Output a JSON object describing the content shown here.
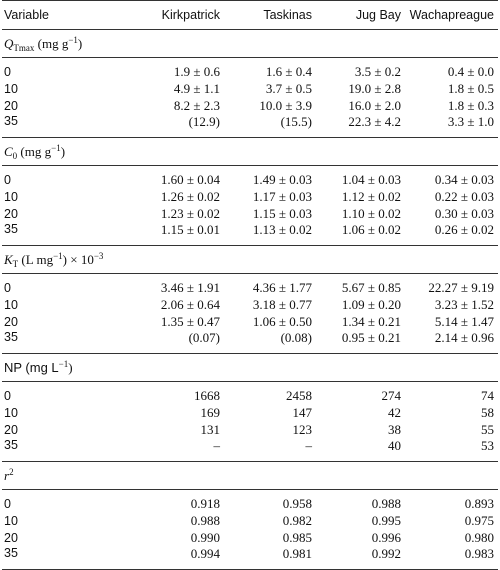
{
  "table": {
    "headers": [
      "Variable",
      "Kirkpatrick",
      "Taskinas",
      "Jug Bay",
      "Wachapreague"
    ],
    "sections": [
      {
        "title": [
          {
            "text": "Q",
            "format": "italic"
          },
          {
            "text": "Tmax",
            "format": "sub"
          },
          {
            "text": " (mg g",
            "format": "roman"
          },
          {
            "text": "−1",
            "format": "sup"
          },
          {
            "text": ")",
            "format": "roman"
          }
        ],
        "rows": [
          [
            "0",
            "1.9 ± 0.6",
            "1.6 ± 0.4",
            "3.5 ± 0.2",
            "0.4 ± 0.0"
          ],
          [
            "10",
            "4.9 ± 1.1",
            "3.7 ± 0.5",
            "19.0 ± 2.8",
            "1.8 ± 0.5"
          ],
          [
            "20",
            "8.2 ± 2.3",
            "10.0 ± 3.9",
            "16.0 ± 2.0",
            "1.8 ± 0.3"
          ],
          [
            "35",
            "(12.9)",
            "(15.5)",
            "22.3 ± 4.2",
            "3.3 ± 1.0"
          ]
        ]
      },
      {
        "title": [
          {
            "text": "C",
            "format": "italic"
          },
          {
            "text": "0",
            "format": "sub"
          },
          {
            "text": " (mg g",
            "format": "roman"
          },
          {
            "text": "−1",
            "format": "sup"
          },
          {
            "text": ")",
            "format": "roman"
          }
        ],
        "rows": [
          [
            "0",
            "1.60 ± 0.04",
            "1.49 ± 0.03",
            "1.04 ± 0.03",
            "0.34 ± 0.03"
          ],
          [
            "10",
            "1.26 ± 0.02",
            "1.17 ± 0.03",
            "1.12 ± 0.02",
            "0.22 ± 0.03"
          ],
          [
            "20",
            "1.23 ± 0.02",
            "1.15 ± 0.03",
            "1.10 ± 0.02",
            "0.30 ± 0.03"
          ],
          [
            "35",
            "1.15 ± 0.01",
            "1.13 ± 0.02",
            "1.06 ± 0.02",
            "0.26 ± 0.02"
          ]
        ]
      },
      {
        "title": [
          {
            "text": "K",
            "format": "italic"
          },
          {
            "text": "T",
            "format": "sub"
          },
          {
            "text": " (L mg",
            "format": "roman"
          },
          {
            "text": "−1",
            "format": "sup"
          },
          {
            "text": ") × 10",
            "format": "roman"
          },
          {
            "text": "−3",
            "format": "sup"
          }
        ],
        "rows": [
          [
            "0",
            "3.46 ± 1.91",
            "4.36 ± 1.77",
            "5.67 ± 0.85",
            "22.27 ± 9.19"
          ],
          [
            "10",
            "2.06 ± 0.64",
            "3.18 ± 0.77",
            "1.09 ± 0.20",
            "3.23 ± 1.52"
          ],
          [
            "20",
            "1.35 ± 0.47",
            "1.06 ± 0.50",
            "1.34 ± 0.21",
            "5.14 ± 1.47"
          ],
          [
            "35",
            "(0.07)",
            "(0.08)",
            "0.95 ± 0.21",
            "2.14 ± 0.96"
          ]
        ]
      },
      {
        "title": [
          {
            "text": "NP (mg L",
            "format": "roman"
          },
          {
            "text": "−1",
            "format": "sup"
          },
          {
            "text": ")",
            "format": "roman"
          }
        ],
        "rows": [
          [
            "0",
            "1668",
            "2458",
            "274",
            "74"
          ],
          [
            "10",
            "169",
            "147",
            "42",
            "58"
          ],
          [
            "20",
            "131",
            "123",
            "38",
            "55"
          ],
          [
            "35",
            "–",
            "–",
            "40",
            "53"
          ]
        ]
      },
      {
        "title": [
          {
            "text": "r",
            "format": "italic"
          },
          {
            "text": "2",
            "format": "sup"
          }
        ],
        "rows": [
          [
            "0",
            "0.918",
            "0.958",
            "0.988",
            "0.893"
          ],
          [
            "10",
            "0.988",
            "0.982",
            "0.995",
            "0.975"
          ],
          [
            "20",
            "0.990",
            "0.985",
            "0.996",
            "0.980"
          ],
          [
            "35",
            "0.994",
            "0.981",
            "0.992",
            "0.983"
          ]
        ]
      }
    ]
  }
}
